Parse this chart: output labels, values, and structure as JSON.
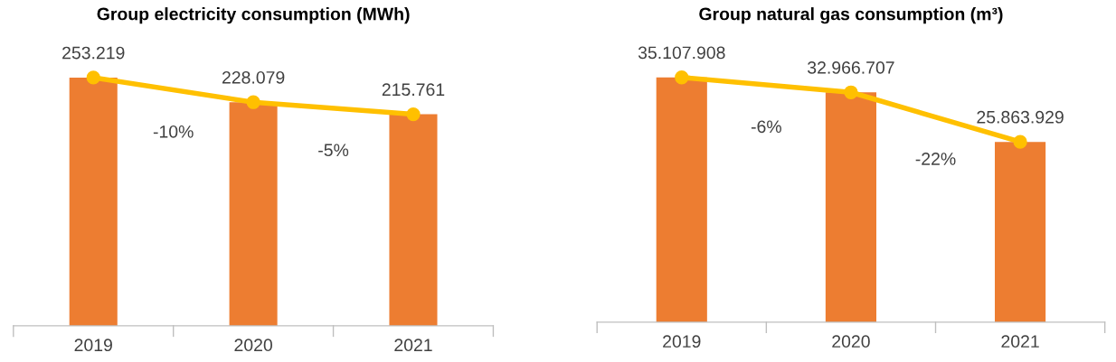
{
  "chart_data": [
    {
      "type": "bar",
      "title": "Group electricity consumption (MWh)",
      "categories": [
        "2019",
        "2020",
        "2021"
      ],
      "tick_labels": "x",
      "grid": false,
      "legend": false,
      "series": [
        {
          "color": "#ed7d31",
          "values": [
            253219,
            228079,
            215761
          ]
        },
        {
          "type": "line",
          "color": "#ffc000",
          "marker": "circle",
          "values": [
            253219,
            228079,
            215761
          ],
          "value_labels": [
            "253.219",
            "228.079",
            "215.761"
          ]
        }
      ],
      "annotations": [
        "-10%",
        "-5%"
      ]
    },
    {
      "type": "bar",
      "title": "Group natural gas consumption (m³)",
      "categories": [
        "2019",
        "2020",
        "2021"
      ],
      "tick_labels": "x",
      "grid": false,
      "legend": false,
      "series": [
        {
          "color": "#ed7d31",
          "values": [
            35107908,
            32966707,
            25863929
          ]
        },
        {
          "type": "line",
          "color": "#ffc000",
          "marker": "circle",
          "values": [
            35107908,
            32966707,
            25863929
          ],
          "value_labels": [
            "35.107.908",
            "32.966.707",
            "25.863.929"
          ]
        }
      ],
      "annotations": [
        "-6%",
        "-22%"
      ]
    }
  ]
}
